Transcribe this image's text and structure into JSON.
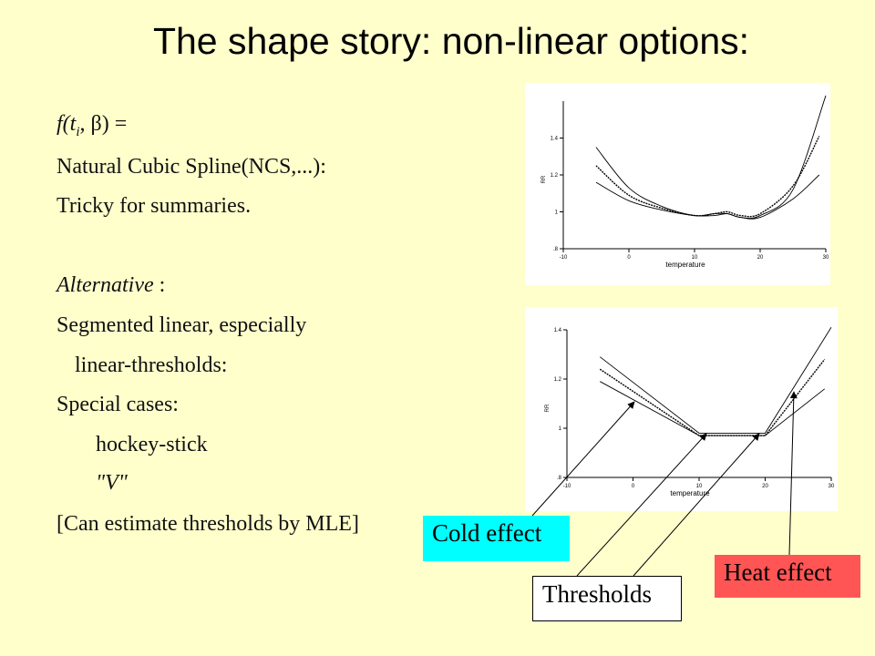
{
  "title": "The shape story: non-linear options:",
  "text": {
    "formula": "f(t",
    "formula_sub": "i",
    "formula_rest": ", β) =",
    "ncs": "Natural Cubic Spline(NCS,...):",
    "tricky": "Tricky for summaries.",
    "alternative": "Alternative",
    "alternative_colon": " :",
    "segmented": "Segmented linear, especially",
    "thresholds": "linear-thresholds:",
    "special": "Special cases:",
    "hockey": "hockey-stick",
    "v": "\"V\"",
    "mle": "[Can estimate thresholds by MLE]"
  },
  "labels": {
    "cold": "Cold effect",
    "thresholds": "Thresholds",
    "heat": "Heat effect"
  },
  "colors": {
    "background": "#ffffcc",
    "cold": "#00ffff",
    "heat": "#ff5555"
  },
  "chart_data": [
    {
      "type": "line",
      "xlabel": "temperature",
      "ylabel": "RR",
      "xlim": [
        -10,
        30
      ],
      "ylim": [
        0.8,
        1.6
      ],
      "xticks": [
        -10,
        0,
        10,
        20,
        30
      ],
      "xtick_labels": [
        "-10",
        "0",
        "10",
        "20",
        "30"
      ],
      "yticks": [
        0.8,
        1,
        1.2,
        1.4
      ],
      "ytick_labels": [
        ".8",
        "1",
        "1.2",
        "1.4"
      ],
      "series": [
        {
          "style": "solid",
          "x": [
            -5,
            0,
            5,
            10,
            13,
            15,
            17,
            20,
            25,
            30
          ],
          "y": [
            1.35,
            1.13,
            1.03,
            0.98,
            0.99,
            0.99,
            0.97,
            0.98,
            1.12,
            1.63
          ]
        },
        {
          "style": "dotted",
          "x": [
            -5,
            0,
            5,
            10,
            13,
            15,
            17,
            20,
            25,
            29
          ],
          "y": [
            1.25,
            1.09,
            1.02,
            0.98,
            0.99,
            1.0,
            0.98,
            0.99,
            1.14,
            1.41
          ]
        },
        {
          "style": "solid",
          "x": [
            -5,
            0,
            5,
            10,
            13,
            15,
            17,
            20,
            25,
            29
          ],
          "y": [
            1.16,
            1.06,
            1.01,
            0.98,
            0.98,
            0.99,
            0.97,
            0.97,
            1.07,
            1.2
          ]
        }
      ]
    },
    {
      "type": "line",
      "xlabel": "temperature",
      "ylabel": "RR",
      "xlim": [
        -10,
        30
      ],
      "ylim": [
        0.8,
        1.4
      ],
      "xticks": [
        -10,
        0,
        10,
        20,
        30
      ],
      "xtick_labels": [
        "-10",
        "0",
        "10",
        "20",
        "30"
      ],
      "yticks": [
        0.8,
        1,
        1.2,
        1.4
      ],
      "ytick_labels": [
        ".8",
        "1",
        "1.2",
        "1.4"
      ],
      "series": [
        {
          "style": "solid",
          "x": [
            -5,
            10,
            20,
            30
          ],
          "y": [
            1.29,
            0.98,
            0.98,
            1.41
          ]
        },
        {
          "style": "dotted",
          "x": [
            -5,
            10,
            20,
            29
          ],
          "y": [
            1.24,
            0.97,
            0.97,
            1.28
          ]
        },
        {
          "style": "solid",
          "x": [
            -5,
            10,
            20,
            29
          ],
          "y": [
            1.19,
            0.97,
            0.97,
            1.16
          ]
        }
      ]
    }
  ]
}
